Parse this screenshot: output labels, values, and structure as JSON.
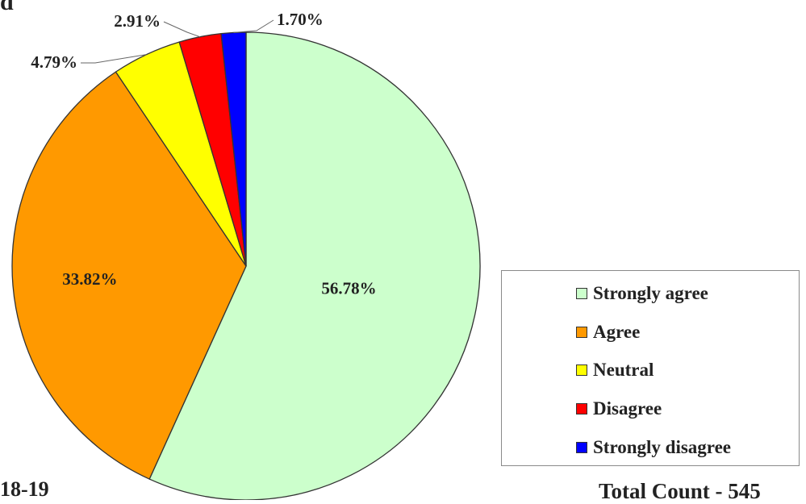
{
  "panel_letter": "d",
  "year_label": "18-19",
  "total_label": "Total Count - 545",
  "chart_data": {
    "type": "pie",
    "title": "",
    "categories": [
      "Strongly agree",
      "Agree",
      "Neutral",
      "Disagree",
      "Strongly disagree"
    ],
    "values": [
      56.78,
      33.82,
      4.79,
      2.91,
      1.7
    ],
    "value_labels": [
      "56.78%",
      "33.82%",
      "4.79%",
      "2.91%",
      "1.70%"
    ],
    "colors": [
      "#ccffcc",
      "#ff9900",
      "#ffff00",
      "#ff0000",
      "#0000ff"
    ],
    "start": "12 o'clock",
    "direction": "clockwise",
    "legend_position": "right"
  }
}
